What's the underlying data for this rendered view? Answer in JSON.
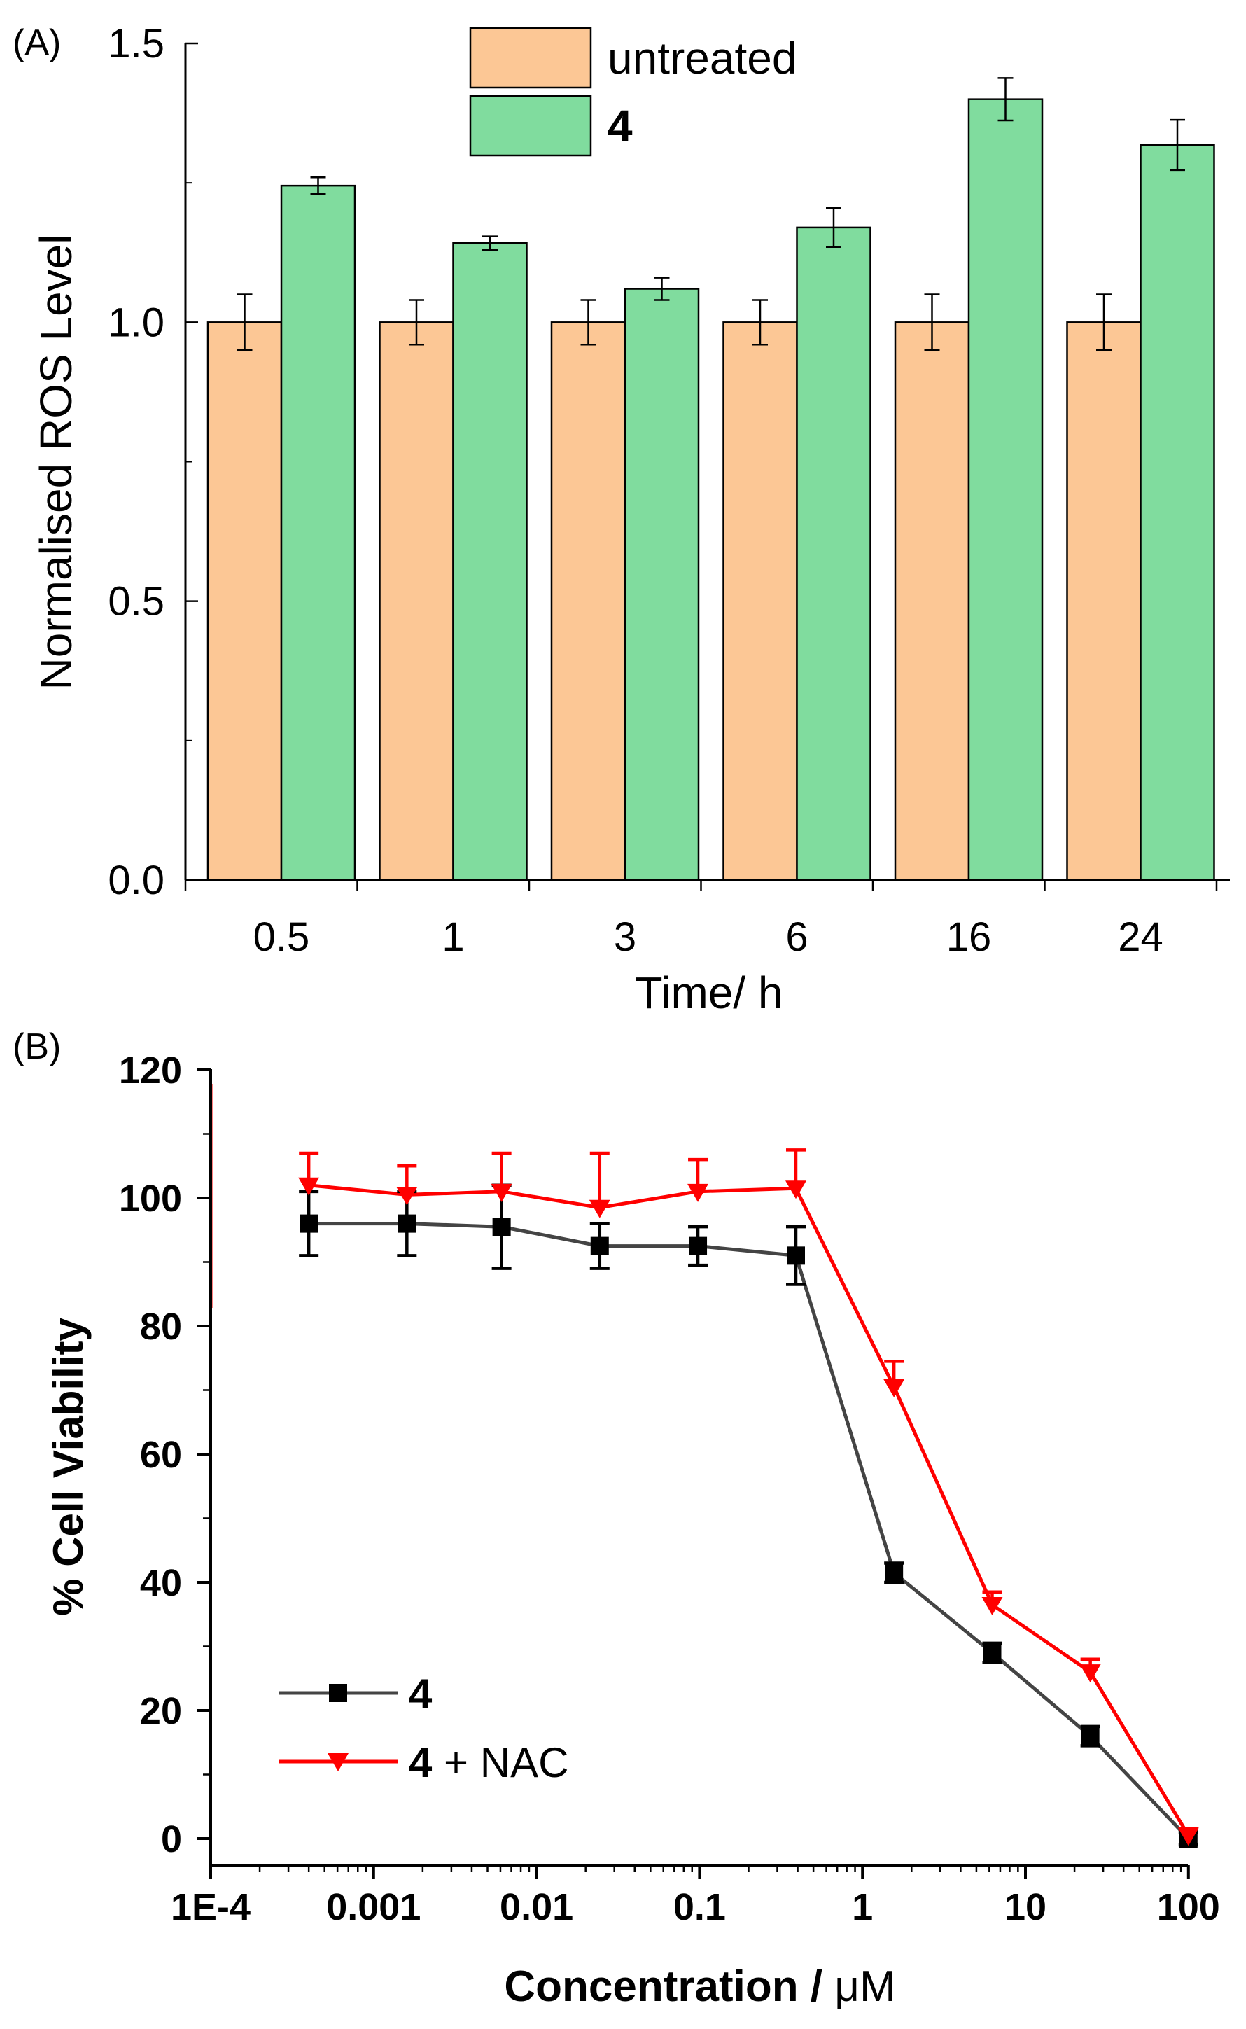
{
  "chart_data": [
    {
      "type": "bar",
      "panel_label": "(A)",
      "title": "",
      "xlabel": "Time/ h",
      "ylabel": "Normalised ROS Level",
      "categories": [
        "0.5",
        "1",
        "3",
        "6",
        "16",
        "24"
      ],
      "ylim": [
        0,
        1.5
      ],
      "yticks": [
        0.0,
        0.5,
        1.0,
        1.5
      ],
      "ytick_labels": [
        "0.0",
        "0.5",
        "1.0",
        "1.5"
      ],
      "grid": false,
      "legend_position": "top-center",
      "series": [
        {
          "name": "untreated",
          "color": "#FCC795",
          "values": [
            1.0,
            1.0,
            1.0,
            1.0,
            1.0,
            1.0
          ],
          "errors": [
            0.05,
            0.04,
            0.04,
            0.04,
            0.05,
            0.05
          ]
        },
        {
          "name": "4",
          "color": "#80DC9E",
          "values": [
            1.245,
            1.142,
            1.06,
            1.17,
            1.4,
            1.318
          ],
          "errors": [
            0.015,
            0.012,
            0.02,
            0.035,
            0.038,
            0.045
          ]
        }
      ]
    },
    {
      "type": "line",
      "panel_label": "(B)",
      "title": "",
      "xlabel_prefix": "Concentration / ",
      "xlabel_unit": "μM",
      "ylabel": "% Cell Viability",
      "xscale": "log",
      "xlim": [
        0.0001,
        100
      ],
      "xticks": [
        0.0001,
        0.001,
        0.01,
        0.1,
        1,
        10,
        100
      ],
      "xtick_labels": [
        "1E-4",
        "0.001",
        "0.01",
        "0.1",
        "1",
        "10",
        "100"
      ],
      "ylim": [
        0,
        120
      ],
      "yticks": [
        0,
        20,
        40,
        60,
        80,
        100,
        120
      ],
      "ytick_labels": [
        "0",
        "20",
        "40",
        "60",
        "80",
        "100",
        "120"
      ],
      "grid": false,
      "legend_position": "bottom-left",
      "series": [
        {
          "name": "4",
          "name_suffix": "",
          "color": "#000000",
          "line_color": "#444444",
          "marker": "square",
          "x": [
            0.0004,
            0.0016,
            0.0061,
            0.0244,
            0.0977,
            0.39,
            1.56,
            6.25,
            25,
            100
          ],
          "values": [
            96,
            96,
            95.5,
            92.5,
            92.5,
            91,
            41.5,
            29,
            16,
            0
          ],
          "errors": [
            5,
            5,
            6.5,
            3.5,
            3,
            4.5,
            1.5,
            1.5,
            1.5,
            1
          ]
        },
        {
          "name": "4",
          "name_suffix": " + NAC",
          "color": "#FF0000",
          "line_color": "#FF0000",
          "marker": "triangle-down",
          "x": [
            0.0004,
            0.0016,
            0.0061,
            0.0244,
            0.0977,
            0.39,
            1.56,
            6.25,
            25,
            100
          ],
          "values": [
            102,
            100.5,
            101,
            98.5,
            101,
            101.5,
            70.5,
            36.5,
            26,
            0.5
          ],
          "errors": [
            5,
            4.5,
            6,
            8.5,
            5,
            6,
            4,
            2,
            2,
            1
          ]
        }
      ]
    }
  ]
}
